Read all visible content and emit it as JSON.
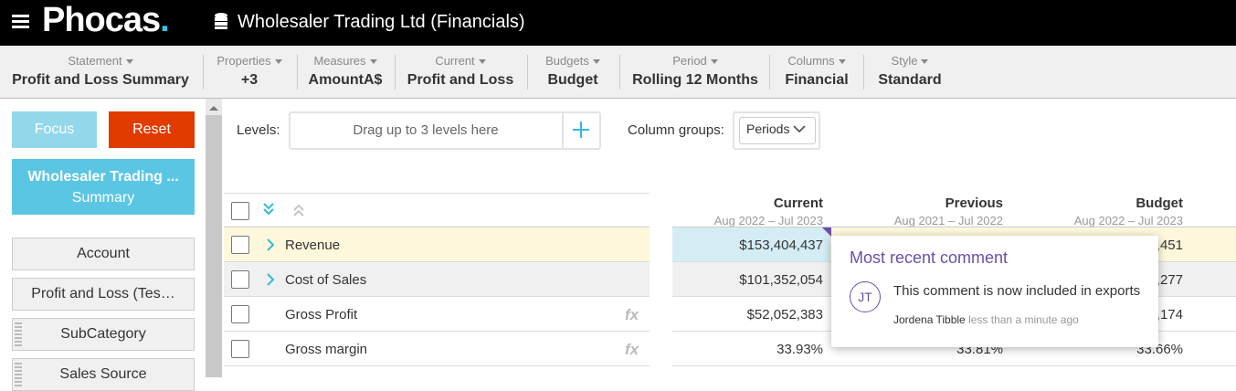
{
  "header": {
    "logo": "Phocas",
    "logo_dot": ".",
    "title": "Wholesaler Trading Ltd (Financials)"
  },
  "toolbar": [
    {
      "label": "Statement",
      "value": "Profit and Loss Summary"
    },
    {
      "label": "Properties",
      "value": "+3"
    },
    {
      "label": "Measures",
      "value": "AmountA$"
    },
    {
      "label": "Current",
      "value": "Profit and Loss"
    },
    {
      "label": "Budgets",
      "value": "Budget"
    },
    {
      "label": "Period",
      "value": "Rolling 12 Months"
    },
    {
      "label": "Columns",
      "value": "Financial"
    },
    {
      "label": "Style",
      "value": "Standard"
    }
  ],
  "sidebar": {
    "focus": "Focus",
    "reset": "Reset",
    "card": {
      "title": "Wholesaler Trading ...",
      "subtitle": "Summary"
    },
    "items": [
      "Account",
      "Profit and Loss (Tes…",
      "SubCategory",
      "Sales Source"
    ]
  },
  "levels": {
    "label": "Levels:",
    "placeholder": "Drag up to 3 levels here"
  },
  "column_groups": {
    "label": "Column groups:",
    "value": "Periods"
  },
  "table": {
    "columns": [
      {
        "name": "Current",
        "range": "Aug 2022 – Jul 2023"
      },
      {
        "name": "Previous",
        "range": "Aug 2021 – Jul 2022"
      },
      {
        "name": "Budget",
        "range": "Aug 2022 – Jul 2023"
      }
    ],
    "rows": [
      {
        "name": "Revenue",
        "values": [
          "$153,404,437",
          null,
          ",451"
        ]
      },
      {
        "name": "Cost of Sales",
        "values": [
          "$101,352,054",
          null,
          ",277"
        ]
      },
      {
        "name": "Gross Profit",
        "icon": "fx",
        "values": [
          "$52,052,383",
          null,
          ",174"
        ]
      },
      {
        "name": "Gross margin",
        "icon": "fx",
        "values": [
          "33.93%",
          "33.81%",
          "33.66%"
        ]
      }
    ]
  },
  "comment": {
    "title": "Most recent comment",
    "initials": "JT",
    "text": "This comment is now included in exports",
    "author": "Jordena Tibble",
    "time": "less than a minute ago"
  }
}
